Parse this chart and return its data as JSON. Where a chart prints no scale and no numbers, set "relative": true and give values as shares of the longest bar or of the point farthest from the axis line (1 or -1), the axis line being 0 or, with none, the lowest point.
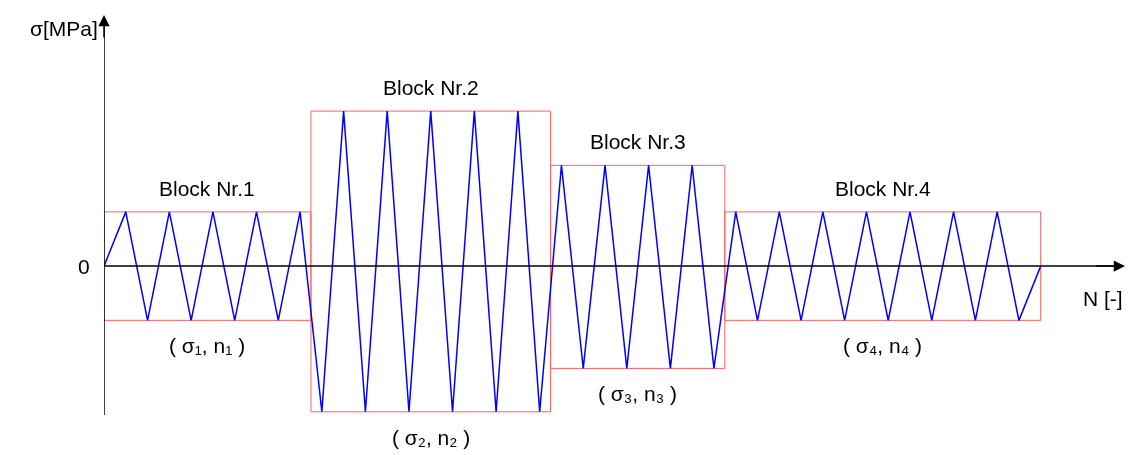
{
  "chart_data": {
    "type": "line",
    "relative": true,
    "xlabel": "N [-]",
    "ylabel": "σ[MPa]",
    "grid": false,
    "marker": "none",
    "line_style": "solid",
    "categories": [
      null,
      null,
      null,
      null,
      null,
      null,
      null,
      null,
      null,
      null,
      null,
      null,
      null,
      null,
      null,
      null,
      null,
      null,
      null,
      null,
      null,
      null,
      null,
      null,
      null,
      null,
      null,
      null,
      null,
      null,
      null,
      null,
      null,
      null,
      null,
      null,
      null,
      null,
      null,
      null,
      null,
      null,
      null,
      null
    ],
    "series": [
      {
        "color": "#0000ff",
        "values": [
          0,
          0.35,
          -0.35,
          0.35,
          -0.35,
          0.35,
          -0.35,
          0.35,
          -0.35,
          0.35,
          -0.94,
          1,
          -0.94,
          1,
          -0.94,
          1,
          -0.94,
          1,
          -0.94,
          1,
          -0.94,
          0.65,
          -0.66,
          0.65,
          -0.66,
          0.65,
          -0.66,
          0.65,
          -0.66,
          0.35,
          -0.35,
          0.35,
          -0.35,
          0.35,
          -0.35,
          0.35,
          -0.35,
          0.35,
          -0.35,
          0.35,
          -0.35,
          0.35,
          -0.35,
          0
        ]
      }
    ],
    "annotations": [
      "0",
      "Block Nr.1",
      "Block Nr.2",
      "Block Nr.3",
      "Block Nr.4",
      "( σ₁, n₁ )",
      "( σ₂, n₂ )",
      "( σ₃, n₃ )",
      "( σ₄, n₄ )"
    ]
  }
}
